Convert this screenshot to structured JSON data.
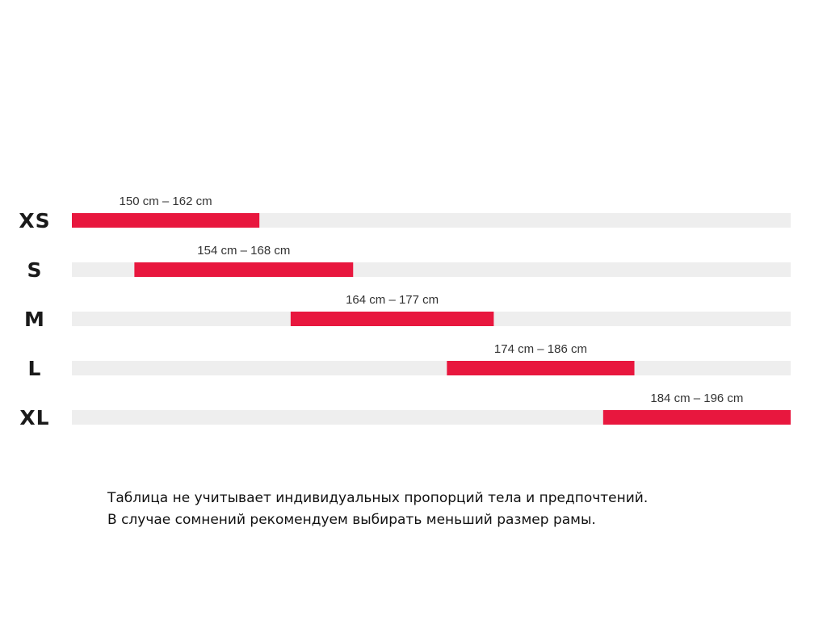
{
  "chart_data": {
    "type": "bar",
    "orientation": "horizontal-range",
    "title": "",
    "xlabel": "",
    "ylabel": "",
    "unit": "cm",
    "xlim": [
      150,
      196
    ],
    "grid": false,
    "legend": "none",
    "categories": [
      "XS",
      "S",
      "M",
      "L",
      "XL"
    ],
    "ranges": [
      {
        "size": "XS",
        "min": 150,
        "max": 162,
        "label": "150 cm – 162 cm"
      },
      {
        "size": "S",
        "min": 154,
        "max": 168,
        "label": "154 cm – 168 cm"
      },
      {
        "size": "M",
        "min": 164,
        "max": 177,
        "label": "164 cm – 177 cm"
      },
      {
        "size": "L",
        "min": 174,
        "max": 186,
        "label": "174 cm – 186 cm"
      },
      {
        "size": "XL",
        "min": 184,
        "max": 196,
        "label": "184 cm – 196 cm"
      }
    ],
    "colors": {
      "range_bar": "#e8173e",
      "track": "#eeeeee"
    }
  },
  "note": {
    "line1": "Таблица не учитывает индивидуальных пропорций тела и предпочтений.",
    "line2": "В случае сомнений рекомендуем выбирать меньший размер рамы."
  }
}
